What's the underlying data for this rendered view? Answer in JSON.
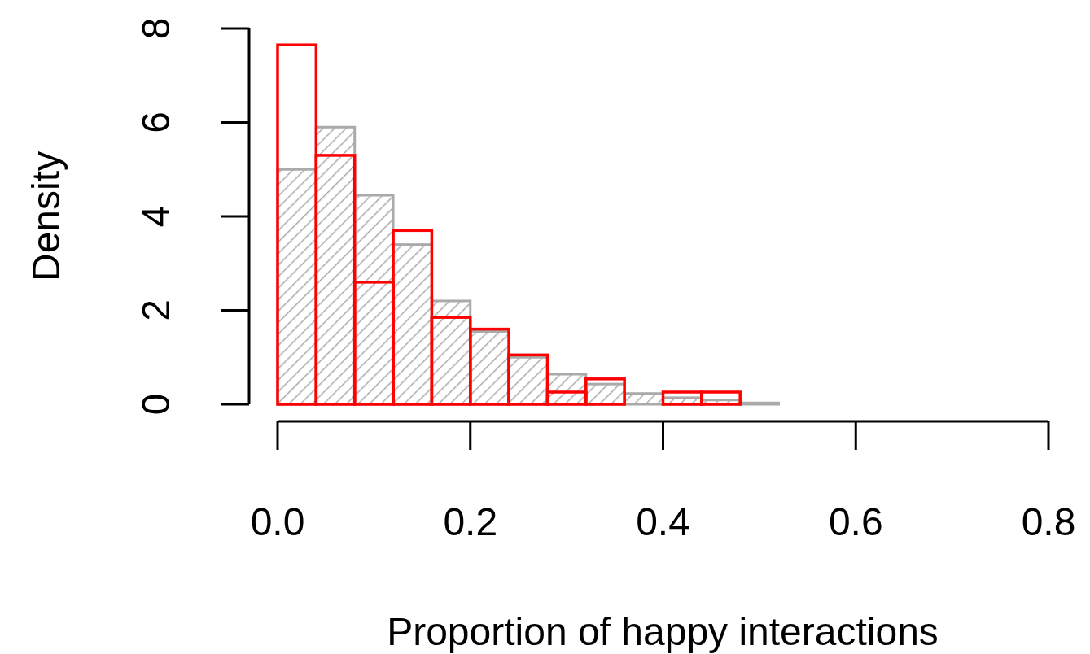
{
  "chart_data": {
    "type": "histogram",
    "xlabel": "Proportion of happy interactions",
    "ylabel": "Density",
    "bins": [
      0,
      0.04,
      0.08,
      0.12,
      0.16,
      0.2,
      0.24,
      0.28,
      0.32,
      0.36,
      0.4,
      0.44,
      0.48,
      0.52,
      0.56,
      0.6,
      0.64,
      0.68,
      0.72,
      0.76,
      0.8
    ],
    "series": [
      {
        "color": "#aaaaaa",
        "values": [
          5.0,
          5.9,
          4.45,
          3.4,
          2.2,
          1.55,
          1.0,
          0.64,
          0.43,
          0.23,
          0.14,
          0.09,
          0.03,
          0,
          0,
          0,
          0,
          0,
          0,
          0
        ]
      },
      {
        "color": "#ff0000",
        "values": [
          7.65,
          5.3,
          2.6,
          3.7,
          1.85,
          1.6,
          1.05,
          0.26,
          0.54,
          0,
          0.26,
          0.26,
          0,
          0,
          0,
          0,
          0,
          0,
          0,
          0
        ]
      }
    ],
    "xlim": [
      0,
      0.8
    ],
    "xticks": [
      {
        "value": 0,
        "label": "0.0"
      },
      0.2,
      0.4,
      0.6,
      0.8
    ],
    "ylim": [
      0,
      8
    ],
    "yticks": [
      0,
      2,
      4,
      6,
      8
    ],
    "grid": false
  }
}
